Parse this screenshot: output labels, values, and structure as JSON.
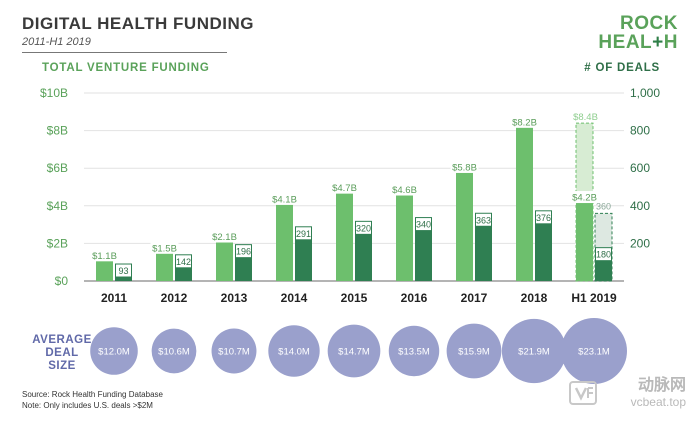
{
  "header": {
    "title": "DIGITAL HEALTH FUNDING",
    "subtitle": "2011-H1 2019",
    "logo_top": "ROCK",
    "logo_bottom_a": "HEAL",
    "logo_bottom_cross": "+",
    "logo_bottom_b": "H"
  },
  "axes": {
    "left_title": "TOTAL VENTURE FUNDING",
    "right_title": "# OF DEALS"
  },
  "avg_deal": {
    "label_line1": "AVERAGE",
    "label_line2": "DEAL",
    "label_line3": "SIZE"
  },
  "footer": {
    "source": "Source: Rock Health Funding Database",
    "note": "Note: Only includes U.S. deals >$2M"
  },
  "watermark": {
    "text": "动脉网",
    "url": "vcbeat.top"
  },
  "colors": {
    "funding_bar": "#6dbf6d",
    "deals_bar": "#2f7f52",
    "projected_funding": "#d7ecd3",
    "projected_deals": "#dde8e1",
    "bubble": "#9aa0cc",
    "axis_left": "#5aa25a",
    "axis_right": "#2f6f48"
  },
  "chart_data": {
    "type": "bar",
    "categories": [
      "2011",
      "2012",
      "2013",
      "2014",
      "2015",
      "2016",
      "2017",
      "2018",
      "H1 2019"
    ],
    "series": [
      {
        "name": "TOTAL VENTURE FUNDING",
        "axis": "left",
        "values": [
          1.1,
          1.5,
          2.1,
          4.1,
          4.7,
          4.6,
          5.8,
          8.2,
          4.2
        ],
        "labels": [
          "$1.1B",
          "$1.5B",
          "$2.1B",
          "$4.1B",
          "$4.7B",
          "$4.6B",
          "$5.8B",
          "$8.2B",
          "$4.2B"
        ]
      },
      {
        "name": "# OF DEALS",
        "axis": "right",
        "values": [
          93,
          142,
          196,
          291,
          320,
          340,
          363,
          376,
          180
        ],
        "labels": [
          "93",
          "142",
          "196",
          "291",
          "320",
          "340",
          "363",
          "376",
          "180"
        ]
      }
    ],
    "projections": {
      "funding": {
        "category": "H1 2019",
        "value": 8.4,
        "label": "$8.4B"
      },
      "deals": {
        "category": "H1 2019",
        "value": 360,
        "label": "360"
      }
    },
    "average_deal_size": {
      "values": [
        12.0,
        10.6,
        10.7,
        14.0,
        14.7,
        13.5,
        15.9,
        21.9,
        23.1
      ],
      "labels": [
        "$12.0M",
        "$10.6M",
        "$10.7M",
        "$14.0M",
        "$14.7M",
        "$13.5M",
        "$15.9M",
        "$21.9M",
        "$23.1M"
      ]
    },
    "left_axis": {
      "ticks": [
        "$0",
        "$2B",
        "$4B",
        "$6B",
        "$8B",
        "$10B"
      ],
      "ylim": [
        0,
        10
      ]
    },
    "right_axis": {
      "ticks": [
        "200",
        "400",
        "600",
        "800",
        "1,000"
      ],
      "ylim": [
        0,
        1000
      ]
    },
    "grid": true
  }
}
